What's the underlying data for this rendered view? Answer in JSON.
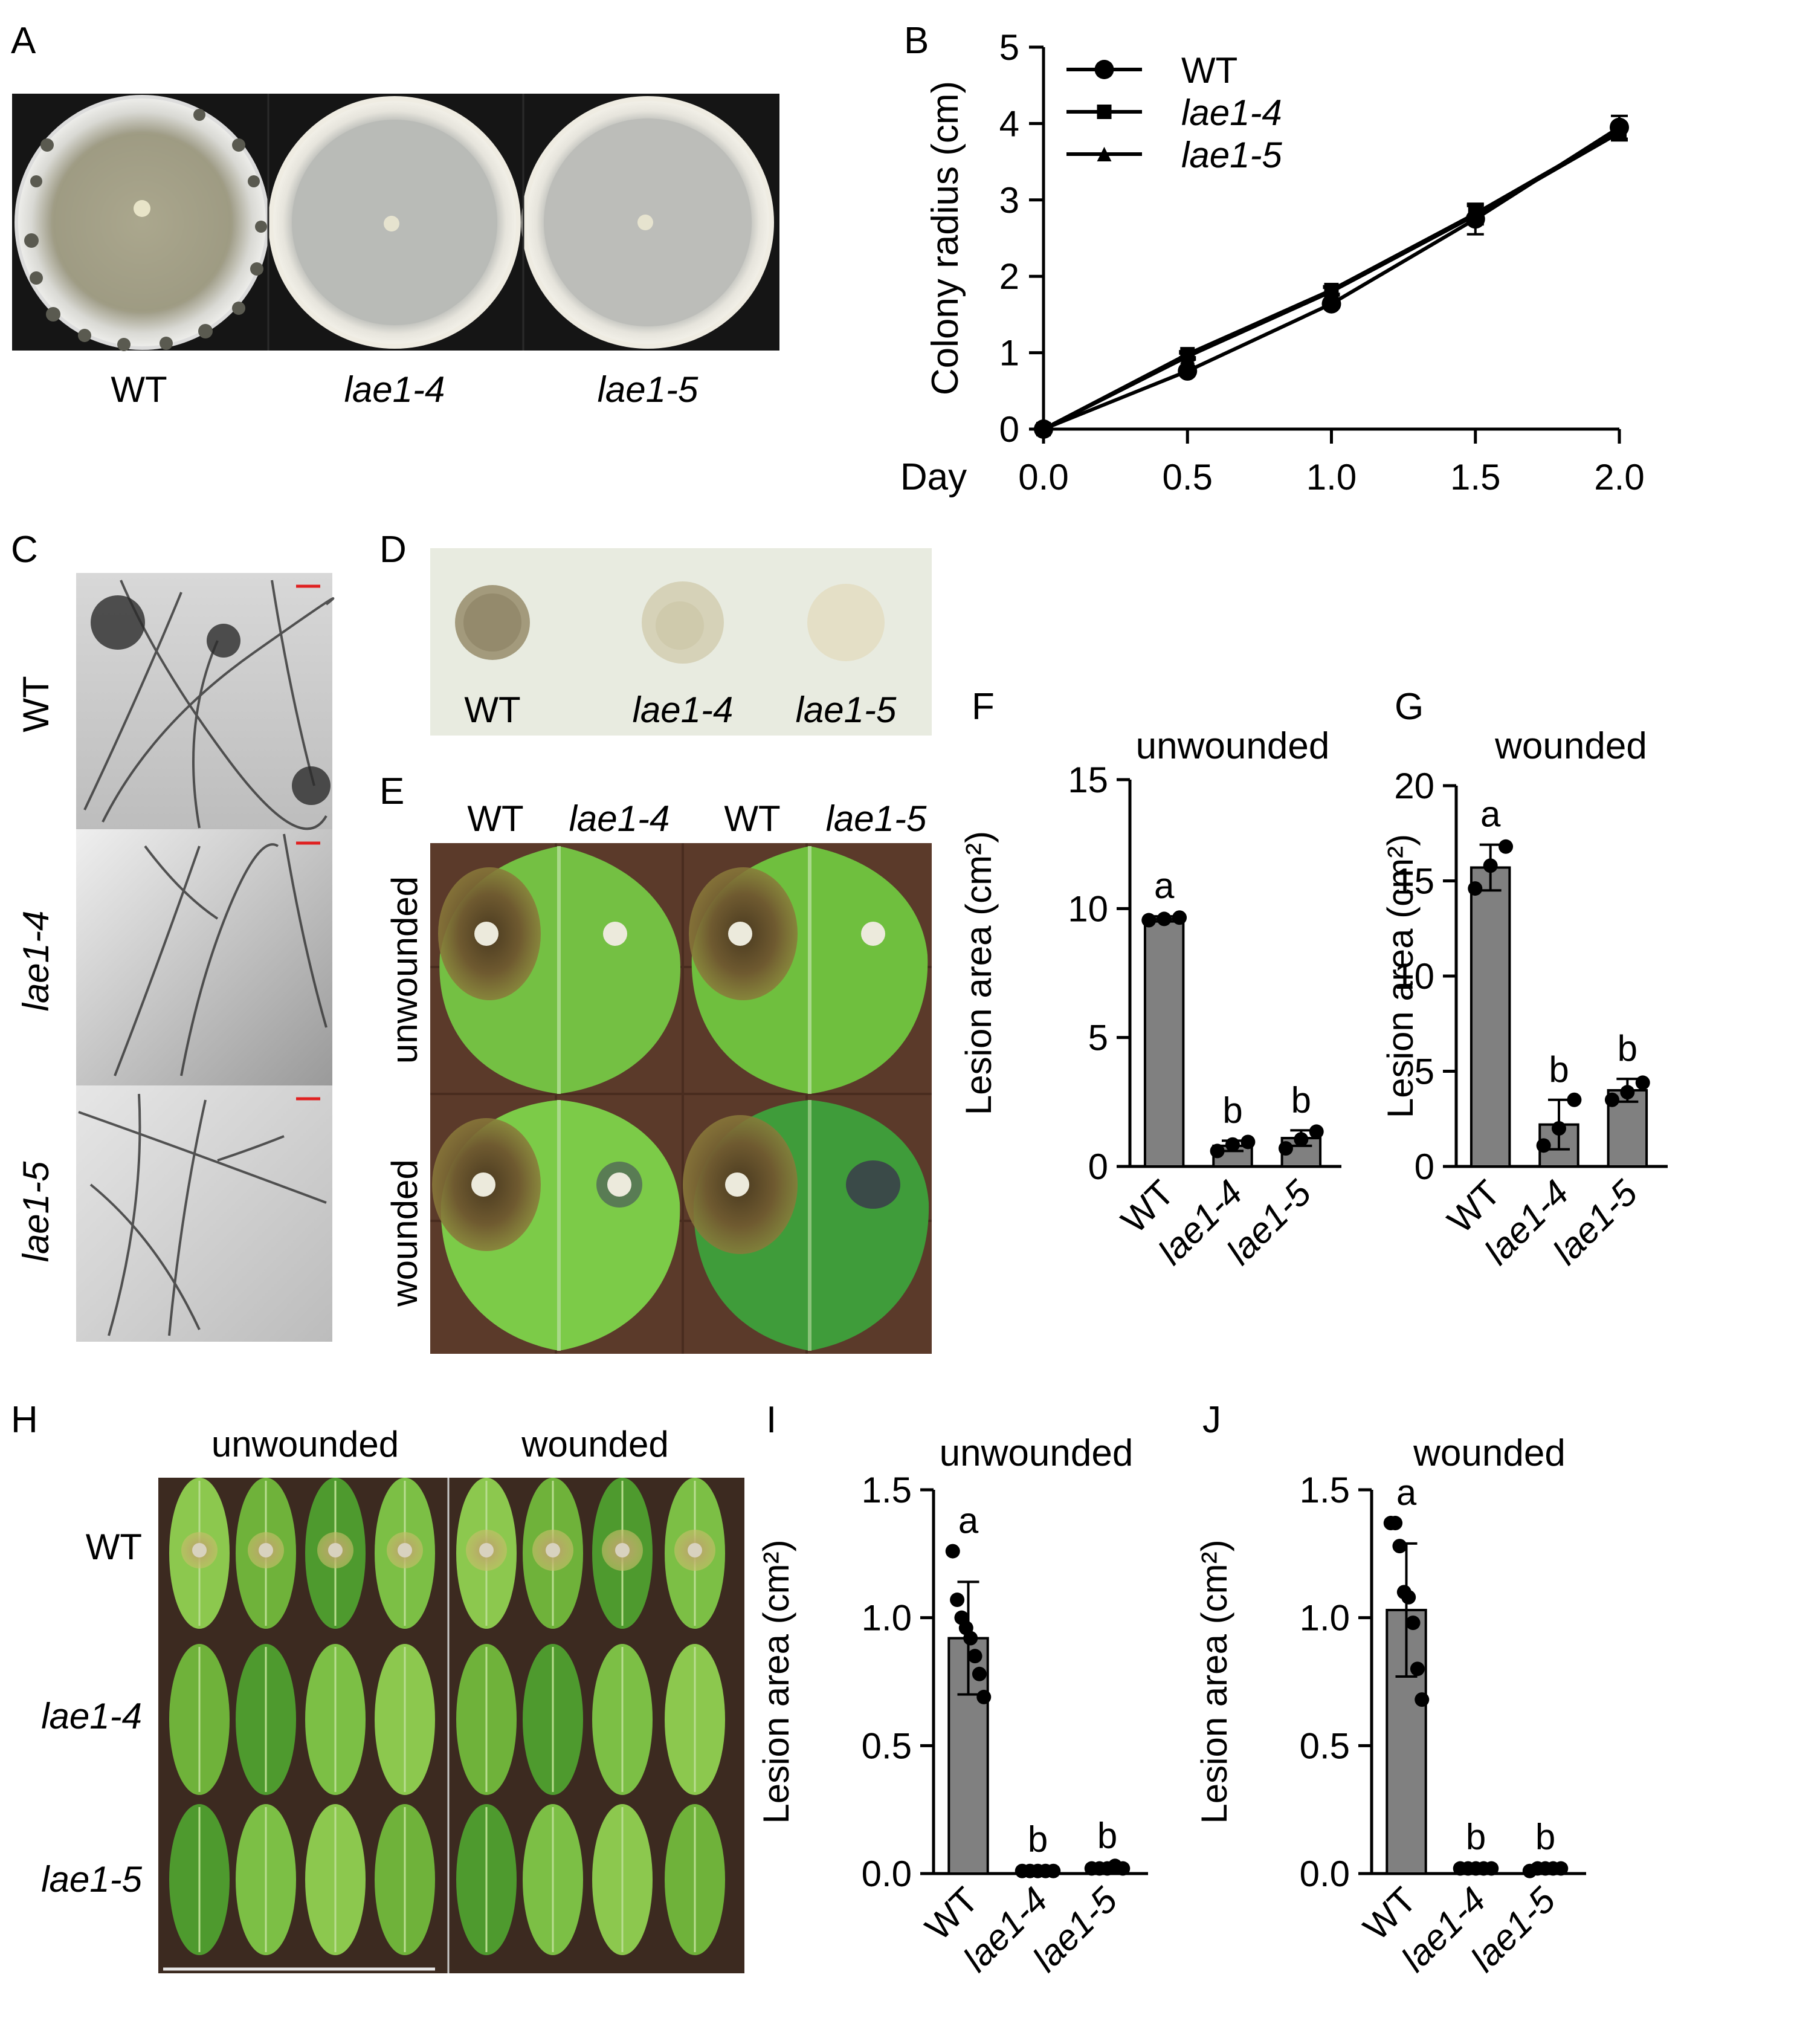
{
  "panel_letters": {
    "A": "A",
    "B": "B",
    "C": "C",
    "D": "D",
    "E": "E",
    "F": "F",
    "G": "G",
    "H": "H",
    "I": "I",
    "J": "J"
  },
  "panel_A": {
    "labels": [
      "WT",
      "lae1-4",
      "lae1-5"
    ]
  },
  "panel_C": {
    "labels": [
      "WT",
      "lae1-4",
      "lae1-5"
    ]
  },
  "panel_D": {
    "labels": [
      "WT",
      "lae1-4",
      "lae1-5"
    ]
  },
  "panel_E": {
    "col_labels": [
      "WT",
      "lae1-4",
      "WT",
      "lae1-5"
    ],
    "row_labels": [
      "unwounded",
      "wounded"
    ]
  },
  "panel_H": {
    "col_labels": [
      "unwounded",
      "wounded"
    ],
    "row_labels": [
      "WT",
      "lae1-4",
      "lae1-5"
    ]
  },
  "colors": {
    "bar_fill": "#808080",
    "axis": "#000000",
    "scale_bar": "#e02020",
    "leaf_green": "#6cbf3a",
    "lesion_brown": "#7a5a2a",
    "plate_bg": "#1a1a1a"
  },
  "chart_data": [
    {
      "id": "B",
      "type": "line",
      "xlabel": "Day",
      "ylabel": "Colony radius (cm)",
      "xlim": [
        0,
        2
      ],
      "ylim": [
        0,
        5
      ],
      "xticks": [
        "0.0",
        "0.5",
        "1.0",
        "1.5",
        "2.0"
      ],
      "yticks": [
        "0",
        "1",
        "2",
        "3",
        "4",
        "5"
      ],
      "legend_position": "top-left",
      "x": [
        0,
        0.5,
        1.0,
        1.5,
        2.0
      ],
      "series": [
        {
          "name": "WT",
          "marker": "circle",
          "values": [
            0,
            0.76,
            1.64,
            2.75,
            3.95
          ],
          "errors": [
            0,
            0.04,
            0.05,
            0.2,
            0.15
          ]
        },
        {
          "name": "lae1-4",
          "marker": "square",
          "values": [
            0,
            0.98,
            1.82,
            2.82,
            3.9
          ],
          "errors": [
            0,
            0.04,
            0.05,
            0.12,
            0.1
          ]
        },
        {
          "name": "lae1-5",
          "marker": "triangle",
          "values": [
            0,
            0.95,
            1.8,
            2.8,
            3.88
          ],
          "errors": [
            0,
            0.04,
            0.05,
            0.12,
            0.1
          ]
        }
      ]
    },
    {
      "id": "F",
      "type": "bar",
      "title": "unwounded",
      "ylabel": "Lesion area (cm²)",
      "ylim": [
        0,
        15
      ],
      "yticks": [
        "0",
        "5",
        "10",
        "15"
      ],
      "categories": [
        "WT",
        "lae1-4",
        "lae1-5"
      ],
      "values": [
        9.6,
        0.8,
        1.1
      ],
      "errors": [
        0.1,
        0.2,
        0.3
      ],
      "significance": [
        "a",
        "b",
        "b"
      ],
      "points": [
        [
          9.55,
          9.6,
          9.65
        ],
        [
          0.6,
          0.85,
          0.95
        ],
        [
          0.7,
          1.05,
          1.35
        ]
      ]
    },
    {
      "id": "G",
      "type": "bar",
      "title": "wounded",
      "ylabel": "Lesion area (cm²)",
      "ylim": [
        0,
        20
      ],
      "yticks": [
        "0",
        "5",
        "10",
        "15",
        "20"
      ],
      "categories": [
        "WT",
        "lae1-4",
        "lae1-5"
      ],
      "values": [
        15.7,
        2.2,
        4.0
      ],
      "errors": [
        1.2,
        1.3,
        0.6
      ],
      "significance": [
        "a",
        "b",
        "b"
      ],
      "points": [
        [
          14.6,
          15.8,
          16.8
        ],
        [
          1.1,
          2.0,
          3.5
        ],
        [
          3.5,
          3.9,
          4.4
        ]
      ]
    },
    {
      "id": "I",
      "type": "bar",
      "title": "unwounded",
      "ylabel": "Lesion area (cm²)",
      "ylim": [
        0,
        1.5
      ],
      "yticks": [
        "0.0",
        "0.5",
        "1.0",
        "1.5"
      ],
      "categories": [
        "WT",
        "lae1-4",
        "lae1-5"
      ],
      "values": [
        0.92,
        0.01,
        0.02
      ],
      "errors": [
        0.22,
        0.005,
        0.01
      ],
      "significance": [
        "a",
        "b",
        "b"
      ],
      "points": [
        [
          1.26,
          1.07,
          1.0,
          0.96,
          0.92,
          0.85,
          0.78,
          0.69
        ],
        [
          0.01,
          0.01,
          0.01,
          0.01,
          0.01
        ],
        [
          0.02,
          0.02,
          0.02,
          0.03,
          0.02
        ]
      ]
    },
    {
      "id": "J",
      "type": "bar",
      "title": "wounded",
      "ylabel": "Lesion area (cm²)",
      "ylim": [
        0,
        1.5
      ],
      "yticks": [
        "0.0",
        "0.5",
        "1.0",
        "1.5"
      ],
      "categories": [
        "WT",
        "lae1-4",
        "lae1-5"
      ],
      "values": [
        1.03,
        0.02,
        0.02
      ],
      "errors": [
        0.26,
        0.005,
        0.005
      ],
      "significance": [
        "a",
        "b",
        "b"
      ],
      "points": [
        [
          1.37,
          1.37,
          1.28,
          1.1,
          1.08,
          0.98,
          0.8,
          0.68
        ],
        [
          0.02,
          0.02,
          0.02,
          0.02,
          0.02
        ],
        [
          0.01,
          0.02,
          0.02,
          0.02,
          0.02
        ]
      ]
    }
  ]
}
